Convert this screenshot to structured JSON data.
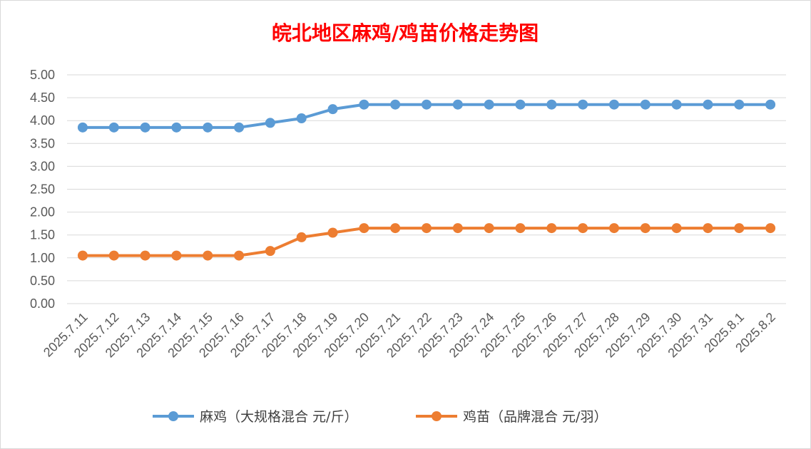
{
  "chart_data": {
    "type": "line",
    "title": "皖北地区麻鸡/鸡苗价格走势图",
    "title_color": "#ff0000",
    "categories": [
      "2025.7.11",
      "2025.7.12",
      "2025.7.13",
      "2025.7.14",
      "2025.7.15",
      "2025.7.16",
      "2025.7.17",
      "2025.7.18",
      "2025.7.19",
      "2025.7.20",
      "2025.7.21",
      "2025.7.22",
      "2025.7.23",
      "2025.7.24",
      "2025.7.25",
      "2025.7.26",
      "2025.7.27",
      "2025.7.28",
      "2025.7.29",
      "2025.7.30",
      "2025.7.31",
      "2025.8.1",
      "2025.8.2"
    ],
    "series": [
      {
        "name": "麻鸡（大规格混合 元/斤）",
        "color": "#5b9bd5",
        "values": [
          3.85,
          3.85,
          3.85,
          3.85,
          3.85,
          3.85,
          3.95,
          4.05,
          4.25,
          4.35,
          4.35,
          4.35,
          4.35,
          4.35,
          4.35,
          4.35,
          4.35,
          4.35,
          4.35,
          4.35,
          4.35,
          4.35,
          4.35
        ]
      },
      {
        "name": "鸡苗（品牌混合 元/羽）",
        "color": "#ed7d31",
        "values": [
          1.05,
          1.05,
          1.05,
          1.05,
          1.05,
          1.05,
          1.15,
          1.45,
          1.55,
          1.65,
          1.65,
          1.65,
          1.65,
          1.65,
          1.65,
          1.65,
          1.65,
          1.65,
          1.65,
          1.65,
          1.65,
          1.65,
          1.65
        ]
      }
    ],
    "y_ticks": [
      "0.00",
      "0.50",
      "1.00",
      "1.50",
      "2.00",
      "2.50",
      "3.00",
      "3.50",
      "4.00",
      "4.50",
      "5.00"
    ],
    "ylim": [
      0,
      5
    ],
    "grid": true,
    "legend_position": "bottom"
  }
}
